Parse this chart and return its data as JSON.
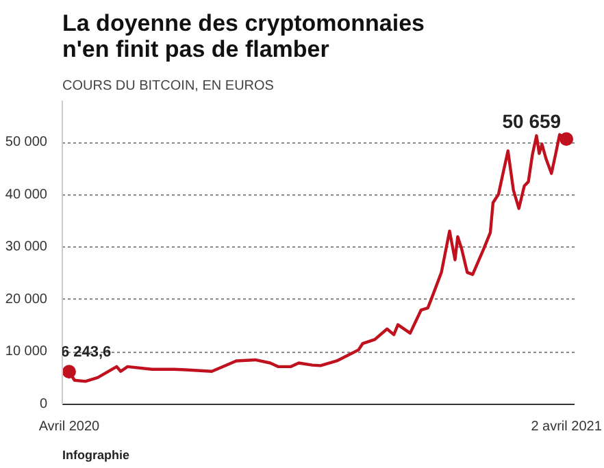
{
  "chart_data": {
    "type": "line",
    "title": "La doyenne des cryptomonnaies\nn'en finit pas de flamber",
    "subtitle": "COURS DU BITCOIN, EN EUROS",
    "x": [
      "2020-04-01",
      "2020-04-05",
      "2020-04-13",
      "2020-04-22",
      "2020-05-06",
      "2020-05-09",
      "2020-05-14",
      "2020-06-01",
      "2020-06-17",
      "2020-06-26",
      "2020-07-15",
      "2020-07-26",
      "2020-08-02",
      "2020-08-16",
      "2020-08-27",
      "2020-09-02",
      "2020-09-11",
      "2020-09-17",
      "2020-09-27",
      "2020-10-03",
      "2020-10-15",
      "2020-10-31",
      "2020-11-03",
      "2020-11-12",
      "2020-11-21",
      "2020-11-26",
      "2020-11-29",
      "2020-12-08",
      "2020-12-16",
      "2020-12-21",
      "2020-12-24",
      "2020-12-31",
      "2021-01-06",
      "2021-01-10",
      "2021-01-12",
      "2021-01-15",
      "2021-01-19",
      "2021-01-23",
      "2021-01-28",
      "2021-01-31",
      "2021-02-05",
      "2021-02-07",
      "2021-02-11",
      "2021-02-14",
      "2021-02-18",
      "2021-02-22",
      "2021-02-26",
      "2021-03-02",
      "2021-03-05",
      "2021-03-08",
      "2021-03-11",
      "2021-03-13",
      "2021-03-15",
      "2021-03-18",
      "2021-03-22",
      "2021-03-25",
      "2021-03-28",
      "2021-04-02"
    ],
    "series": [
      {
        "color": "#c0111f",
        "values": [
          6243.6,
          4600,
          4400,
          5100,
          7200,
          6300,
          7200,
          6700,
          6700,
          6600,
          6300,
          7500,
          8300,
          8500,
          7900,
          7200,
          7200,
          7900,
          7500,
          7400,
          8300,
          10400,
          11600,
          12400,
          14400,
          13300,
          15200,
          13600,
          18000,
          18400,
          20400,
          25200,
          33100,
          27600,
          32000,
          29600,
          25200,
          24800,
          27800,
          29600,
          32800,
          38500,
          40100,
          43700,
          48400,
          40900,
          37400,
          41700,
          42500,
          47700,
          51300,
          47900,
          49700,
          46900,
          44100,
          47700,
          51500,
          50659
        ]
      }
    ],
    "xlim": [
      "2020-03-27",
      "2021-04-08"
    ],
    "xticks": [
      {
        "value": "2020-04-01",
        "label": "Avril 2020"
      },
      {
        "value": "2021-04-02",
        "label": "2 avril 2021"
      }
    ],
    "ylim": [
      0,
      58000
    ],
    "yticks": [
      0,
      {
        "value": 10000,
        "label": "10 000"
      },
      {
        "value": 20000,
        "label": "20 000"
      },
      {
        "value": 30000,
        "label": "30 000"
      },
      {
        "value": 40000,
        "label": "40 000"
      },
      {
        "value": 50000,
        "label": "50 000"
      }
    ],
    "grid": "y",
    "line_style": "solid",
    "annotations": [
      {
        "text": "6 243,6",
        "x": "2020-04-01",
        "y": 6243.6
      },
      {
        "text": "50 659",
        "x": "2021-04-02",
        "y": 50659
      },
      "Infographie"
    ]
  }
}
